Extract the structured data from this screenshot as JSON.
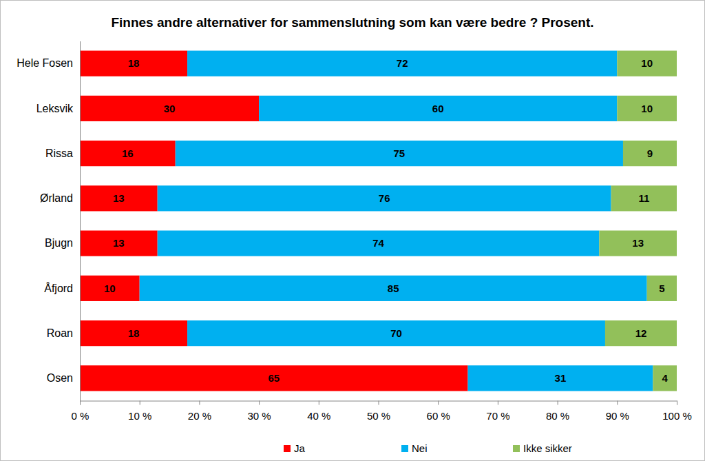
{
  "chart_data": {
    "type": "bar",
    "title": "Finnes andre alternativer for sammenslutning som kan være bedre ? Prosent.",
    "orientation": "horizontal",
    "stacked": true,
    "data_labels": true,
    "grid": false,
    "legend": "bottom",
    "categories": [
      "Hele Fosen",
      "Leksvik",
      "Rissa",
      "Ørland",
      "Bjugn",
      "Åfjord",
      "Roan",
      "Osen"
    ],
    "series": [
      {
        "name": "Ja",
        "color": "#ff0000",
        "values": [
          18,
          30,
          16,
          13,
          13,
          10,
          18,
          65
        ]
      },
      {
        "name": "Nei",
        "color": "#00b0f0",
        "values": [
          72,
          60,
          75,
          76,
          74,
          85,
          70,
          31
        ]
      },
      {
        "name": "Ikke sikker",
        "color": "#92c05a",
        "values": [
          10,
          10,
          9,
          11,
          13,
          5,
          12,
          4
        ]
      }
    ],
    "xlim": [
      0,
      100
    ],
    "xticks": [
      {
        "value": 0,
        "label": "0 %"
      },
      {
        "value": 10,
        "label": "10 %"
      },
      {
        "value": 20,
        "label": "20 %"
      },
      {
        "value": 30,
        "label": "30 %"
      },
      {
        "value": 40,
        "label": "40 %"
      },
      {
        "value": 50,
        "label": "50 %"
      },
      {
        "value": 60,
        "label": "60 %"
      },
      {
        "value": 70,
        "label": "70 %"
      },
      {
        "value": 80,
        "label": "80 %"
      },
      {
        "value": 90,
        "label": "90 %"
      },
      {
        "value": 100,
        "label": "100 %"
      }
    ]
  }
}
